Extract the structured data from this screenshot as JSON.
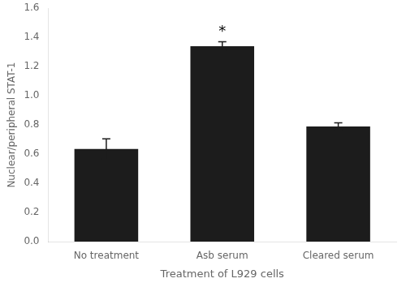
{
  "chart_data": {
    "type": "bar",
    "categories": [
      "No treatment",
      "Asb serum",
      "Cleared serum"
    ],
    "values": [
      0.635,
      1.34,
      0.79
    ],
    "errors": [
      0.07,
      0.03,
      0.025
    ],
    "color": "#1c1c1c",
    "xlabel": "Treatment of L929 cells",
    "ylabel": "Nuclear/peripheral STAT-1",
    "ylim": [
      0,
      1.6
    ],
    "yticks": [
      {
        "value": 0,
        "label": "0.0"
      },
      0.2,
      0.4,
      0.6,
      0.8,
      {
        "value": 1.0,
        "label": "1.0"
      },
      1.2,
      1.4,
      1.6
    ],
    "annotations": [
      {
        "text": "*",
        "category": "Asb serum"
      }
    ],
    "grid": false,
    "legend": false
  }
}
